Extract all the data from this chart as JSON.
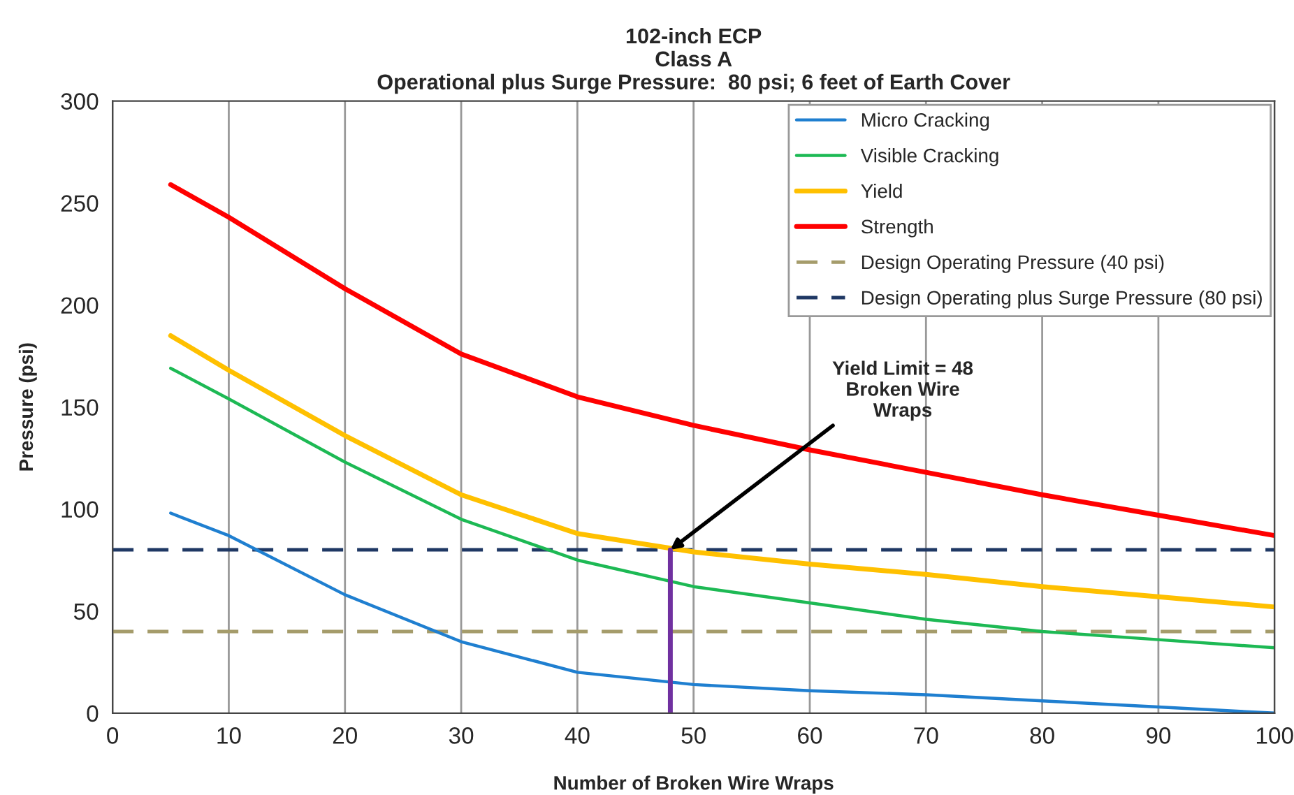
{
  "chart_data": {
    "type": "line",
    "title": "102-inch ECP\nClass A\nOperational plus Surge Pressure:  80 psi; 6 feet of Earth Cover",
    "xlabel": "Number of Broken Wire Wraps",
    "ylabel": "Pressure (psi)",
    "x": [
      5,
      10,
      20,
      30,
      40,
      50,
      60,
      70,
      80,
      90,
      100
    ],
    "series": [
      {
        "name": "Micro Cracking",
        "color": "#1f7fd0",
        "values": [
          98,
          87,
          58,
          35,
          20,
          14,
          11,
          9,
          6,
          3,
          0
        ]
      },
      {
        "name": "Visible Cracking",
        "color": "#1db954",
        "values": [
          169,
          154,
          123,
          95,
          75,
          62,
          54,
          46,
          40,
          36,
          32
        ]
      },
      {
        "name": "Yield",
        "color": "#ffc000",
        "values": [
          185,
          168,
          136,
          107,
          88,
          79,
          73,
          68,
          62,
          57,
          52
        ]
      },
      {
        "name": "Strength",
        "color": "#ff0000",
        "values": [
          259,
          243,
          208,
          176,
          155,
          141,
          129,
          118,
          107,
          97,
          87
        ]
      },
      {
        "color": "#7030a0",
        "x": [
          48,
          48
        ],
        "values": [
          0,
          80
        ]
      }
    ],
    "ref_lines": [
      {
        "axis": "y",
        "value": 40,
        "label": "Design Operating Pressure (40 psi)",
        "color": "#a59c6b",
        "line_style": "dashed"
      },
      {
        "axis": "y",
        "value": 80,
        "label": "Design Operating plus Surge Pressure (80 psi)",
        "color": "#1f3864",
        "line_style": "dashed"
      }
    ],
    "annotations": [
      {
        "text": "Yield Limit = 48\nBroken Wire\nWraps",
        "x": 48,
        "y": 80
      }
    ],
    "xlim": [
      0,
      100
    ],
    "xticks": [
      0,
      10,
      20,
      30,
      40,
      50,
      60,
      70,
      80,
      90,
      100
    ],
    "ylim": [
      0,
      300
    ],
    "yticks": [
      0,
      50,
      100,
      150,
      200,
      250,
      300
    ],
    "grid": "x",
    "legend": "top right",
    "line_style": "solid",
    "marker": "none"
  }
}
